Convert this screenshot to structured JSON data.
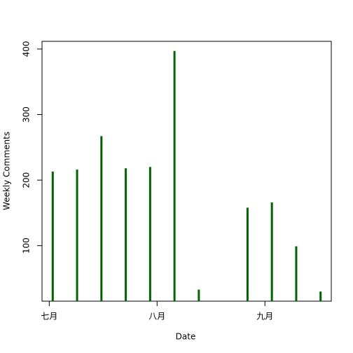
{
  "chart_data": {
    "type": "bar",
    "x": [
      1,
      8,
      15,
      22,
      29,
      36,
      43,
      57,
      64,
      71,
      78
    ],
    "values": [
      213,
      216,
      267,
      218,
      220,
      397,
      33,
      158,
      166,
      99,
      30
    ],
    "color": "#006400",
    "xlabel": "Date",
    "ylabel": "Weekly Comments",
    "xlim": [
      -2.08,
      81.08
    ],
    "xticks": [
      {
        "value": 0,
        "label": "七月"
      },
      {
        "value": 31,
        "label": "八月"
      },
      {
        "value": 62,
        "label": "九月"
      }
    ],
    "ylim": [
      15.3,
      411.7
    ],
    "yticks": [
      100,
      200,
      300,
      400
    ]
  }
}
